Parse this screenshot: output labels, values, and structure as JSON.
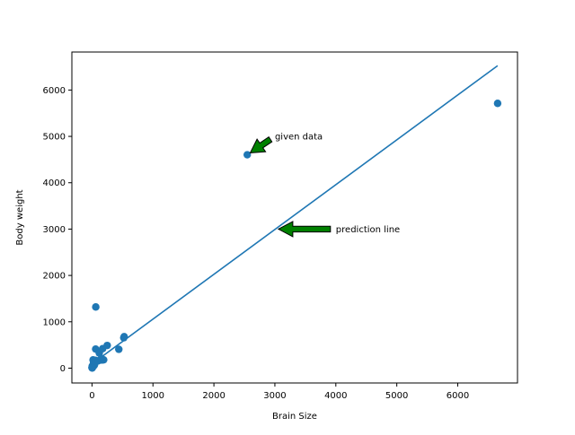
{
  "chart_data": {
    "type": "scatter",
    "title": "",
    "xlabel": "Brain Size",
    "ylabel": "Body weight",
    "xlim": [
      -330,
      6980
    ],
    "ylim": [
      -320,
      6820
    ],
    "xticks": [
      0,
      1000,
      2000,
      3000,
      4000,
      5000,
      6000
    ],
    "yticks": [
      0,
      1000,
      2000,
      3000,
      4000,
      5000,
      6000
    ],
    "grid": false,
    "legend": "none",
    "colors": {
      "points": "#1f77b4",
      "line": "#1f77b4",
      "arrow_fill": "#008000",
      "arrow_edge": "#000000"
    },
    "series": [
      {
        "type": "scatter",
        "x": [
          3.4,
          0.5,
          1.0,
          2.3,
          6.6,
          10.8,
          12.3,
          17.5,
          25.6,
          35.0,
          27.7,
          56.0,
          50.4,
          43.0,
          60.0,
          100.0,
          119.5,
          175.0,
          157.0,
          180.0,
          155.0,
          192.0,
          250.0,
          440.0,
          521.0,
          528.0,
          62.0,
          2547.0,
          6654.0,
          3.5,
          5.5,
          4.2
        ],
        "y": [
          44.5,
          15.5,
          8.1,
          12.3,
          25.6,
          48.0,
          50.0,
          179.0,
          115.0,
          56.0,
          115.0,
          169.0,
          119.5,
          81.0,
          412.0,
          157.0,
          325.0,
          420.0,
          175.0,
          180.0,
          208.0,
          180.0,
          490.0,
          406.0,
          655.0,
          680.0,
          1320.0,
          4603.0,
          5712.0,
          3.9,
          10.0,
          6.4
        ]
      },
      {
        "type": "line",
        "x": [
          0.5,
          6654.0
        ],
        "y": [
          91,
          6525
        ]
      }
    ],
    "annotations": [
      {
        "text": "given data",
        "x": 3000,
        "y": 5000,
        "arrow_to": [
          2547,
          4603
        ]
      },
      {
        "text": "prediction line",
        "x": 4000,
        "y": 3000,
        "arrow_to": [
          3000,
          3000
        ]
      }
    ]
  }
}
